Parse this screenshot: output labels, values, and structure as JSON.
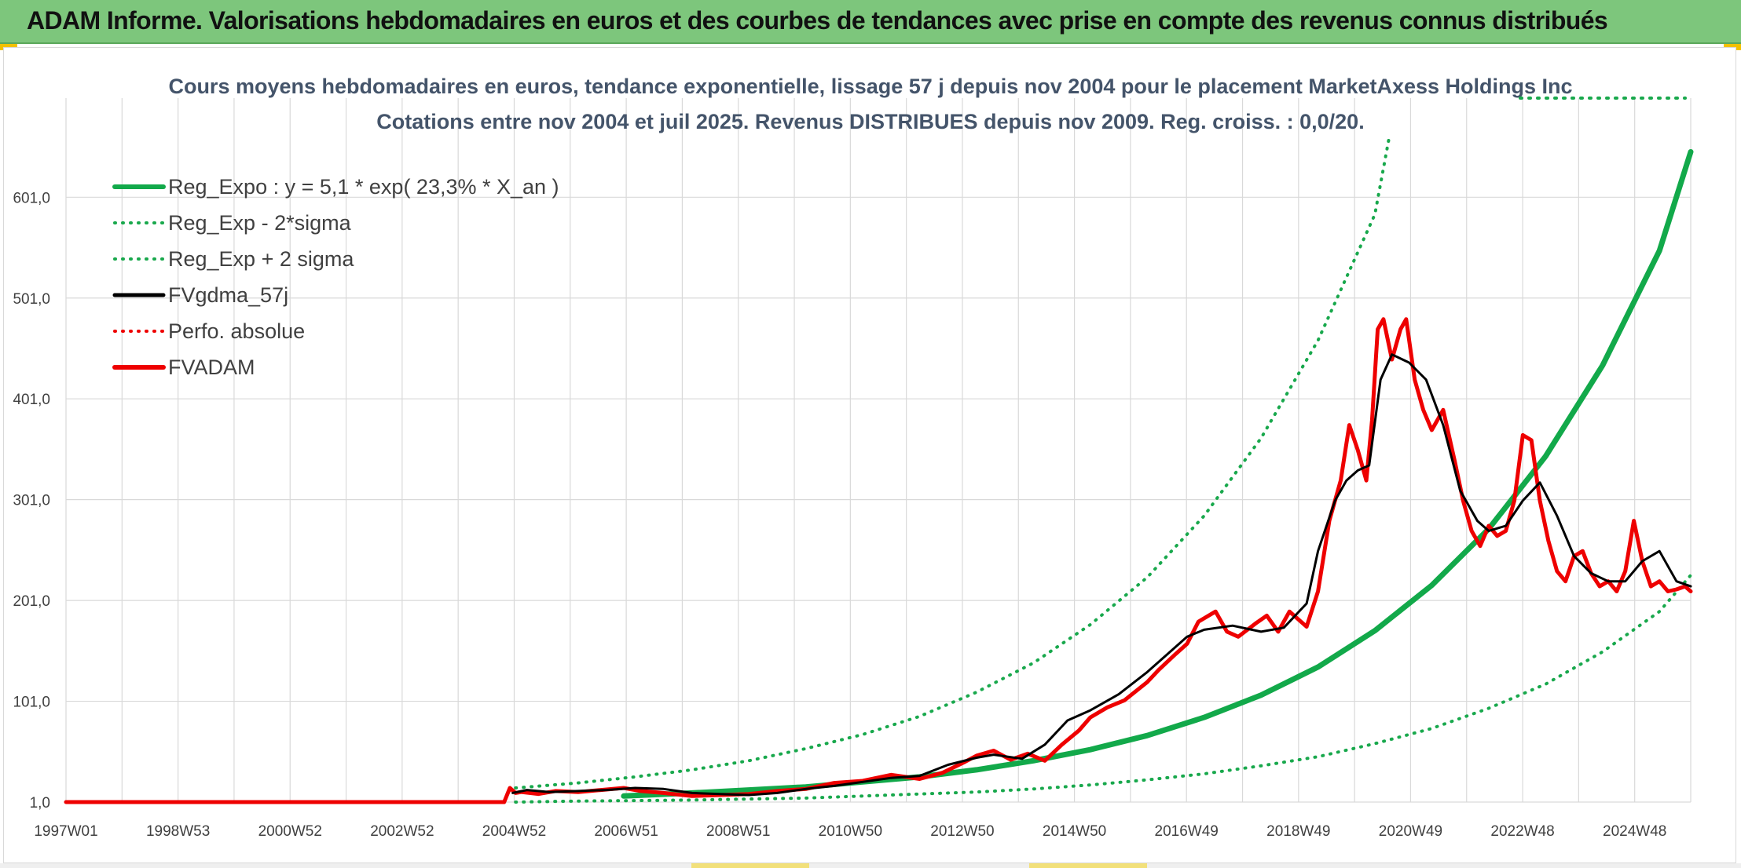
{
  "header": {
    "title": "ADAM Informe. Valorisations hebdomadaires en euros et des courbes de tendances avec prise en compte des revenus connus distribués"
  },
  "colors": {
    "banner": "#7dc67c",
    "reg_green": "#12a94a",
    "dotted_green": "#18a84c",
    "fvgdma_black": "#000000",
    "fvadam_red": "#ee0000",
    "grid": "#d9d9d9"
  },
  "chart_data": {
    "type": "line",
    "title": "Cours moyens hebdomadaires en euros, tendance exponentielle, lissage 57 j depuis nov 2004 pour le placement MarketAxess Holdings Inc",
    "subtitle": "Cotations entre nov 2004 et juil 2025. Revenus DISTRIBUES depuis nov 2009. Reg. croiss. : 0,0/20.",
    "xlabel": "",
    "ylabel": "",
    "x_tick_labels": [
      "1997W01",
      "1998W53",
      "2000W52",
      "2002W52",
      "2004W52",
      "2006W51",
      "2008W51",
      "2010W50",
      "2012W50",
      "2014W50",
      "2016W49",
      "2018W49",
      "2020W49",
      "2022W48",
      "2024W48"
    ],
    "y_tick_labels": [
      "1,0",
      "101,0",
      "201,0",
      "301,0",
      "401,0",
      "501,0",
      "601,0"
    ],
    "y_ticks": [
      1,
      101,
      201,
      301,
      401,
      501,
      601
    ],
    "ylim": [
      1,
      661
    ],
    "xlim": [
      1997.0,
      2025.55
    ],
    "grid": true,
    "legend_position": "top-left",
    "series": [
      {
        "name": "Reg_Expo : y = 5,1 * exp( 23,3% *  X_an )",
        "style": "solid-thick",
        "color": "#12a94a",
        "x": [
          2006.8,
          2008.0,
          2009.0,
          2010.0,
          2011.0,
          2012.0,
          2013.0,
          2014.0,
          2015.0,
          2016.0,
          2017.0,
          2018.0,
          2019.0,
          2020.0,
          2021.0,
          2022.0,
          2023.0,
          2024.0,
          2025.0,
          2025.55
        ],
        "values": [
          7,
          10,
          13,
          16,
          21,
          26,
          33,
          42,
          53,
          67,
          85,
          107,
          135,
          171,
          216,
          272,
          344,
          434,
          548,
          646
        ]
      },
      {
        "name": "Reg_Exp - 2*sigma",
        "style": "dotted",
        "color": "#18a84c",
        "x": [
          2004.9,
          2006.0,
          2007.0,
          2008.0,
          2009.0,
          2010.0,
          2011.0,
          2012.0,
          2013.0,
          2014.0,
          2015.0,
          2016.0,
          2017.0,
          2018.0,
          2019.0,
          2020.0,
          2021.0,
          2022.0,
          2023.0,
          2024.0,
          2025.0,
          2025.55
        ],
        "values": [
          1,
          2,
          2.5,
          3,
          4,
          5,
          7,
          9,
          11,
          14,
          18,
          23,
          29,
          37,
          46,
          59,
          74,
          94,
          118,
          150,
          190,
          226
        ]
      },
      {
        "name": "Reg_Exp + 2 sigma",
        "style": "dotted",
        "color": "#18a84c",
        "x": [
          2004.9,
          2006.0,
          2007.0,
          2008.0,
          2009.0,
          2010.0,
          2011.0,
          2012.0,
          2013.0,
          2014.0,
          2015.0,
          2016.0,
          2017.0,
          2018.0,
          2019.0,
          2020.0,
          2020.25
        ],
        "values": [
          15,
          20,
          26,
          33,
          42,
          54,
          68,
          86,
          110,
          139,
          177,
          224,
          285,
          362,
          459,
          584,
          660
        ]
      },
      {
        "name": "FVgdma_57j",
        "style": "solid",
        "color": "#000000",
        "x": [
          2004.85,
          2005.1,
          2005.5,
          2006.0,
          2006.5,
          2007.0,
          2007.5,
          2008.0,
          2008.5,
          2009.0,
          2009.5,
          2010.0,
          2010.5,
          2011.0,
          2011.5,
          2012.0,
          2012.5,
          2013.0,
          2013.3,
          2013.8,
          2014.2,
          2014.6,
          2015.0,
          2015.5,
          2016.0,
          2016.4,
          2016.7,
          2017.0,
          2017.5,
          2018.0,
          2018.4,
          2018.8,
          2019.0,
          2019.3,
          2019.5,
          2019.7,
          2019.9,
          2020.1,
          2020.3,
          2020.6,
          2020.9,
          2021.2,
          2021.5,
          2021.8,
          2022.0,
          2022.3,
          2022.6,
          2022.9,
          2023.2,
          2023.5,
          2023.8,
          2024.1,
          2024.4,
          2024.7,
          2025.0,
          2025.3,
          2025.55
        ],
        "values": [
          10,
          13,
          11,
          12,
          13,
          15,
          14,
          10,
          9,
          8,
          10,
          14,
          17,
          21,
          25,
          27,
          38,
          45,
          48,
          44,
          58,
          82,
          92,
          108,
          130,
          150,
          165,
          172,
          176,
          170,
          174,
          198,
          250,
          300,
          320,
          330,
          335,
          420,
          445,
          437,
          420,
          375,
          310,
          280,
          270,
          275,
          300,
          318,
          285,
          245,
          228,
          220,
          220,
          240,
          250,
          220,
          215
        ]
      },
      {
        "name": "Perfo. absolue",
        "style": "dotted",
        "color": "#ee0000",
        "x": [],
        "values": []
      },
      {
        "name": "FVADAM",
        "style": "solid-thick",
        "color": "#ee0000",
        "x": [
          1997.0,
          2004.7,
          2004.8,
          2004.9,
          2005.0,
          2005.3,
          2005.6,
          2006.0,
          2006.4,
          2006.8,
          2007.1,
          2007.5,
          2008.0,
          2008.5,
          2009.0,
          2009.5,
          2010.0,
          2010.5,
          2011.0,
          2011.5,
          2012.0,
          2012.4,
          2012.8,
          2013.0,
          2013.3,
          2013.6,
          2013.9,
          2014.2,
          2014.5,
          2014.8,
          2015.0,
          2015.3,
          2015.6,
          2016.0,
          2016.2,
          2016.5,
          2016.7,
          2016.9,
          2017.2,
          2017.4,
          2017.6,
          2017.9,
          2018.1,
          2018.3,
          2018.5,
          2018.8,
          2019.0,
          2019.2,
          2019.4,
          2019.55,
          2019.7,
          2019.85,
          2019.95,
          2020.05,
          2020.15,
          2020.3,
          2020.45,
          2020.55,
          2020.7,
          2020.85,
          2021.0,
          2021.2,
          2021.4,
          2021.55,
          2021.7,
          2021.85,
          2022.0,
          2022.15,
          2022.3,
          2022.45,
          2022.6,
          2022.75,
          2022.9,
          2023.05,
          2023.2,
          2023.35,
          2023.5,
          2023.65,
          2023.8,
          2023.95,
          2024.1,
          2024.25,
          2024.4,
          2024.55,
          2024.7,
          2024.85,
          2025.0,
          2025.15,
          2025.3,
          2025.45,
          2025.55
        ],
        "values": [
          1,
          1,
          15,
          10,
          11,
          9,
          12,
          11,
          13,
          15,
          12,
          10,
          7,
          8,
          9,
          12,
          14,
          20,
          22,
          28,
          24,
          30,
          41,
          47,
          52,
          43,
          49,
          42,
          58,
          72,
          85,
          95,
          102,
          120,
          132,
          148,
          158,
          180,
          190,
          170,
          165,
          178,
          186,
          170,
          190,
          175,
          210,
          280,
          320,
          375,
          350,
          320,
          380,
          470,
          480,
          440,
          470,
          480,
          420,
          390,
          370,
          390,
          340,
          300,
          270,
          255,
          275,
          265,
          270,
          300,
          365,
          360,
          300,
          260,
          230,
          220,
          245,
          250,
          228,
          215,
          220,
          210,
          230,
          280,
          240,
          215,
          220,
          210,
          212,
          215,
          210
        ]
      }
    ]
  }
}
